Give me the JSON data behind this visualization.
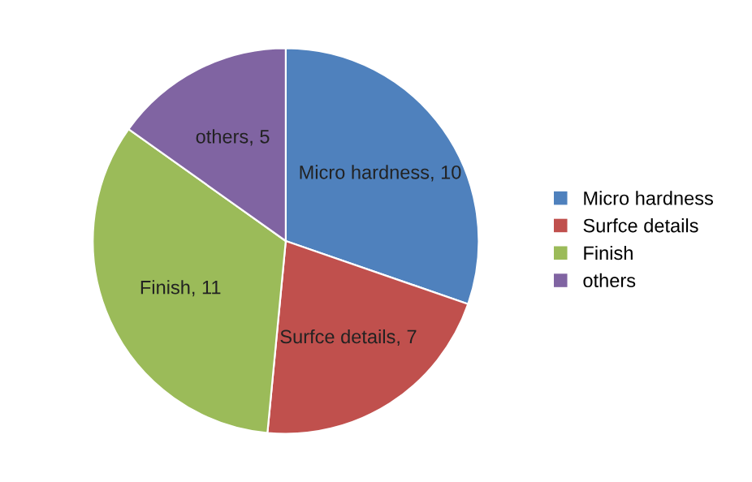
{
  "chart_data": {
    "type": "pie",
    "categories": [
      "Micro hardness",
      "Surfce details",
      "Finish",
      "others"
    ],
    "values": [
      10,
      7,
      11,
      5
    ],
    "colors": [
      "#4f81bd",
      "#c0504d",
      "#9bbb59",
      "#8064a2"
    ],
    "value_labels": [
      "Micro hardness, 10",
      "Surfce details, 7",
      "Finish, 11",
      "others, 5"
    ],
    "legend": "right"
  }
}
